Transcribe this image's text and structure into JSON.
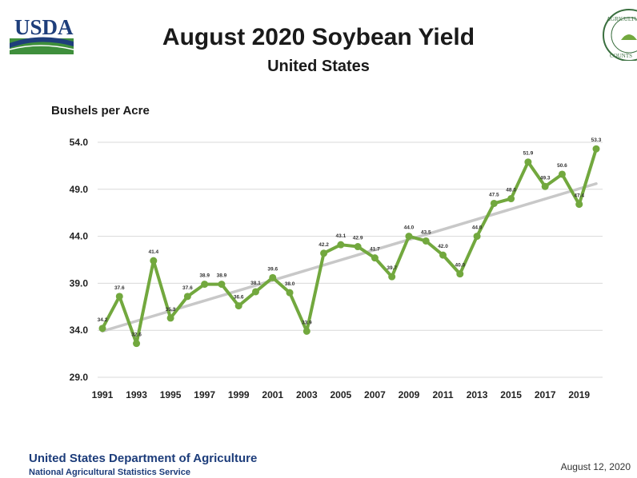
{
  "logo": {
    "text": "USDA"
  },
  "seal": {
    "text": "AGRICULTURE",
    "sub": "COUNTS"
  },
  "header": {
    "title": "August 2020 Soybean Yield",
    "subtitle": "United States"
  },
  "footer": {
    "department": "United States Department of Agriculture",
    "agency": "National Agricultural Statistics Service",
    "date": "August 12, 2020"
  },
  "colors": {
    "series": "#72a83e",
    "trend": "#c8c8c8",
    "grid": "#d9d9d9",
    "footer_text": "#1c3c7a",
    "usda_blue": "#1e3e7b",
    "usda_green": "#3f8f3c"
  },
  "chart_data": {
    "type": "line",
    "title": "August 2020 Soybean Yield",
    "subtitle": "United States",
    "ylabel": "Bushels per Acre",
    "xlabel": "",
    "ylim": [
      29.0,
      54.0
    ],
    "yticks": [
      "29.0",
      "34.0",
      "39.0",
      "44.0",
      "49.0",
      "54.0"
    ],
    "xtick_labels": [
      "1991",
      "1993",
      "1995",
      "1997",
      "1999",
      "2001",
      "2003",
      "2005",
      "2007",
      "2009",
      "2011",
      "2013",
      "2015",
      "2017",
      "2019"
    ],
    "grid": true,
    "x": [
      1991,
      1992,
      1993,
      1994,
      1995,
      1996,
      1997,
      1998,
      1999,
      2000,
      2001,
      2002,
      2003,
      2004,
      2005,
      2006,
      2007,
      2008,
      2009,
      2010,
      2011,
      2012,
      2013,
      2014,
      2015,
      2016,
      2017,
      2018,
      2019,
      2020
    ],
    "series": [
      {
        "values": [
          34.2,
          37.6,
          32.6,
          41.4,
          35.3,
          37.6,
          38.9,
          38.9,
          36.6,
          38.1,
          39.6,
          38.0,
          33.9,
          42.2,
          43.1,
          42.9,
          41.7,
          39.7,
          44.0,
          43.5,
          42.0,
          40.0,
          44.0,
          47.5,
          48.0,
          51.9,
          49.3,
          50.6,
          47.4,
          53.3
        ],
        "labels": [
          "34.2",
          "37.6",
          "32.6",
          "41.4",
          "35.3",
          "37.6",
          "38.9",
          "38.9",
          "36.6",
          "38.1",
          "39.6",
          "38.0",
          "33.9",
          "42.2",
          "43.1",
          "42.9",
          "41.7",
          "39.7",
          "44.0",
          "43.5",
          "42.0",
          "40.0",
          "44.0",
          "47.5",
          "48.0",
          "51.9",
          "49.3",
          "50.6",
          "47.4",
          "53.3"
        ]
      }
    ],
    "trendline": {
      "x": [
        1991,
        2020
      ],
      "y": [
        33.9,
        49.6
      ]
    }
  }
}
